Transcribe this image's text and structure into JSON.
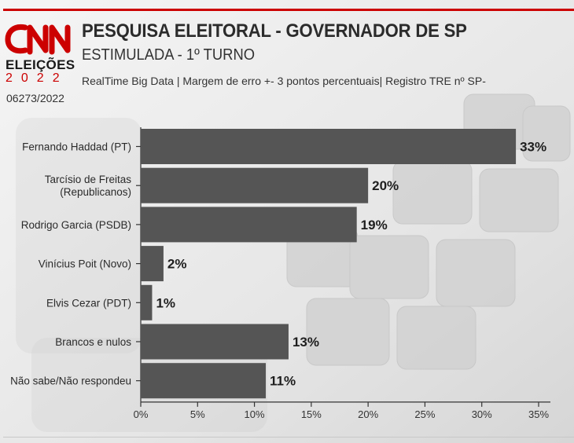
{
  "header": {
    "logo_text": "CNN",
    "logo_sub": "ELEIÇÕES",
    "logo_year": "2022",
    "title": "PESQUISA ELEITORAL - GOVERNADOR DE SP",
    "subtitle": "ESTIMULADA - 1º TURNO",
    "source_line1": "RealTime Big Data | Margem de erro +- 3 pontos percentuais| Registro TRE nº SP-",
    "source_line2": "06273/2022"
  },
  "colors": {
    "accent": "#cc0000",
    "bar": "#555555",
    "text": "#2b2b2b"
  },
  "chart_data": {
    "type": "bar",
    "orientation": "horizontal",
    "categories": [
      [
        "Fernando Haddad (PT)"
      ],
      [
        "Tarcísio de Freitas",
        "(Republicanos)"
      ],
      [
        "Rodrigo Garcia (PSDB)"
      ],
      [
        "Vinícius Poit (Novo)"
      ],
      [
        "Elvis Cezar (PDT)"
      ],
      [
        "Brancos e nulos"
      ],
      [
        "Não sabe/Não respondeu"
      ]
    ],
    "values": [
      33,
      20,
      19,
      2,
      1,
      13,
      11
    ],
    "value_labels": [
      "33%",
      "20%",
      "19%",
      "2%",
      "1%",
      "13%",
      "11%"
    ],
    "xlim": [
      0,
      35
    ],
    "ticks": [
      0,
      5,
      10,
      15,
      20,
      25,
      30,
      35
    ],
    "tick_labels": [
      "0%",
      "5%",
      "10%",
      "15%",
      "20%",
      "25%",
      "30%",
      "35%"
    ],
    "grid": false,
    "legend": "none"
  }
}
